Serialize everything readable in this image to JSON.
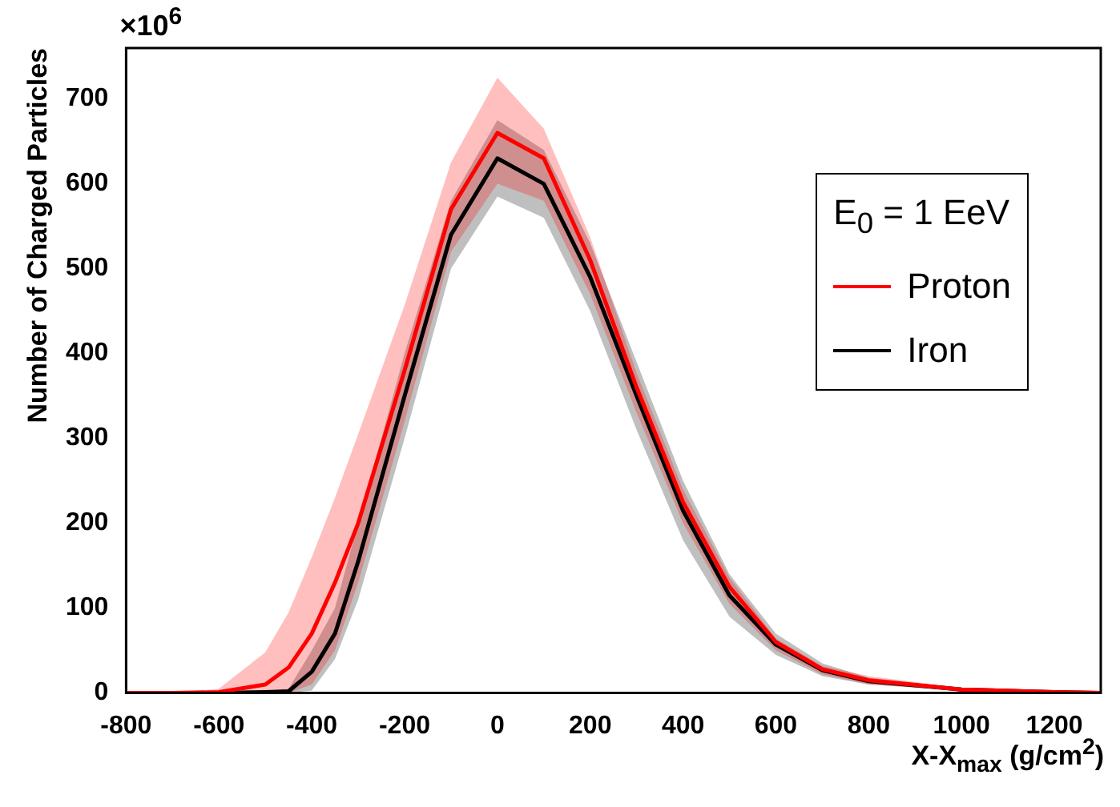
{
  "chart_data": {
    "type": "line",
    "annotations": [
      "×10$^{6}$"
    ],
    "xlabel": "X-X$_{max}$ (g/cm$^{2}$)",
    "ylabel": "Number of Charged Particles",
    "legend_title": "E$_{0}$ = 1 EeV",
    "x": [
      -800,
      -700,
      -600,
      -500,
      -450,
      -400,
      -350,
      -300,
      -200,
      -100,
      0,
      100,
      200,
      300,
      400,
      500,
      600,
      700,
      800,
      1000,
      1200,
      1300
    ],
    "series": [
      {
        "name": "Proton",
        "color": "#ff0000",
        "values": [
          0,
          0,
          1,
          10,
          30,
          70,
          130,
          200,
          380,
          570,
          660,
          630,
          510,
          360,
          225,
          125,
          60,
          28,
          15,
          4,
          1,
          0
        ],
        "lower": [
          0,
          0,
          0,
          0,
          0,
          10,
          50,
          130,
          320,
          520,
          600,
          580,
          470,
          330,
          200,
          105,
          50,
          22,
          10,
          3,
          1,
          0
        ],
        "upper": [
          0,
          0,
          5,
          48,
          95,
          160,
          230,
          305,
          457,
          625,
          725,
          665,
          537,
          377,
          240,
          136,
          64,
          32,
          20,
          6,
          2,
          1
        ]
      },
      {
        "name": "Iron",
        "color": "#000000",
        "values": [
          0,
          0,
          0,
          1,
          2,
          25,
          70,
          155,
          350,
          540,
          630,
          600,
          490,
          350,
          215,
          115,
          57,
          27,
          14,
          4,
          1,
          0
        ],
        "lower": [
          0,
          0,
          0,
          0,
          0,
          3,
          40,
          110,
          300,
          500,
          585,
          560,
          450,
          310,
          180,
          90,
          45,
          20,
          10,
          3,
          1,
          0
        ],
        "upper": [
          0,
          0,
          0,
          2,
          5,
          50,
          100,
          200,
          400,
          580,
          675,
          640,
          530,
          390,
          250,
          140,
          70,
          35,
          18,
          6,
          2,
          1
        ]
      }
    ],
    "xlim": [
      -800,
      1300
    ],
    "xticks": [
      -800,
      -600,
      -400,
      -200,
      0,
      200,
      400,
      600,
      800,
      1000,
      1200
    ],
    "ylim": [
      0,
      760
    ],
    "yticks": [
      0,
      100,
      200,
      300,
      400,
      500,
      600,
      700
    ],
    "legend": "top right",
    "grid": false,
    "marker": "none",
    "line_style": "solid"
  }
}
